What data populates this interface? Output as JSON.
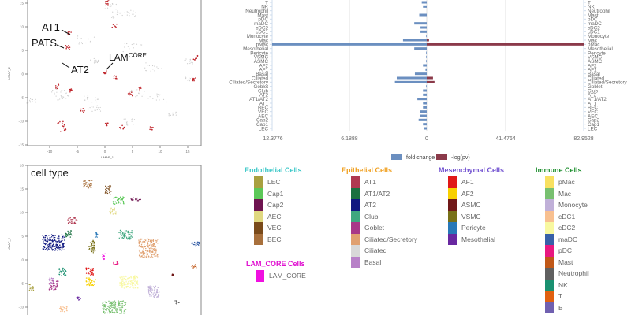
{
  "chart_data": [
    {
      "type": "scatter",
      "id": "umap-lam-highlight",
      "title": "",
      "xlabel": "UMAP_1",
      "ylabel": "UMAP_2",
      "xlim": [
        -14,
        17
      ],
      "ylim": [
        -15,
        15
      ],
      "xticks": [
        "-10",
        "-5",
        "0",
        "5",
        "10",
        "15"
      ],
      "yticks": [
        "15",
        "10",
        "5",
        "0",
        "-5",
        "-10",
        "-15"
      ],
      "annotations": [
        {
          "label": "AT1",
          "sup": ""
        },
        {
          "label": "PATS",
          "sup": ""
        },
        {
          "label": "AT2",
          "sup": ""
        },
        {
          "label": "LAM",
          "sup": "CORE"
        }
      ],
      "highlight_color": "#c0272d",
      "background_color": "#cccccc"
    },
    {
      "type": "scatter",
      "id": "umap-cell-type",
      "title": "cell type",
      "xlabel": "",
      "ylabel": "UMAP_2",
      "ylim": [
        -12,
        20
      ],
      "yticks": [
        "20",
        "15",
        "10",
        "5",
        "0",
        "-5",
        "-10"
      ]
    },
    {
      "type": "bar",
      "id": "diverging-bar",
      "orientation": "horizontal",
      "categories": [
        "LEC",
        "Cap1",
        "Cap2",
        "AEC",
        "VEC",
        "BEC",
        "AT1",
        "AT1/AT2",
        "AT2",
        "Club",
        "Goblet",
        "Ciliated/Secretory",
        "Ciliated",
        "Basal",
        "AF1",
        "AF2",
        "ASMC",
        "VSMC",
        "Pericyte",
        "Mesothelial",
        "pMac",
        "Mac",
        "Monocyte",
        "cDC1",
        "cDC2",
        "maDC",
        "pDC",
        "Mast",
        "Neutrophil",
        "NK",
        "T"
      ],
      "series": [
        {
          "name": "fold change",
          "color": "#6b8fc0",
          "direction": "left",
          "values": [
            0.2,
            0.3,
            0.65,
            0.55,
            0.55,
            0.3,
            0.3,
            0.75,
            0.3,
            0.3,
            0.05,
            2.55,
            2.4,
            0.95,
            0.1,
            0.3,
            0.05,
            0.05,
            0.05,
            1.0,
            12.3776,
            1.9,
            0.05,
            0.5,
            0.5,
            1.0,
            0.0,
            0.6,
            0.0,
            0.3,
            0.4
          ]
        },
        {
          "name": "-log(pv)",
          "color": "#8b3a4a",
          "direction": "right",
          "values": [
            0,
            0,
            0,
            0,
            0,
            0,
            0,
            0,
            0,
            0,
            0,
            4.1,
            3.3,
            0,
            0,
            0,
            0,
            0,
            0,
            0,
            82.9528,
            1.2,
            0,
            0,
            0,
            0,
            0,
            0,
            0,
            0,
            0
          ]
        }
      ],
      "xlim_left": [
        12.3776,
        0
      ],
      "xlim_right": [
        0,
        82.9528
      ],
      "xtick_labels": [
        "12.3776",
        "6.1888",
        "0",
        "41.4764",
        "82.9528"
      ],
      "legend": [
        "fold change",
        "-log(pv)"
      ],
      "legend_position": "bottom"
    }
  ],
  "legend": {
    "groups": [
      {
        "title": "Endothelial Cells",
        "color": "#3cc8c8",
        "items": [
          {
            "label": "LEC",
            "color": "#a8a040"
          },
          {
            "label": "Cap1",
            "color": "#5cc858"
          },
          {
            "label": "Cap2",
            "color": "#6e1450"
          },
          {
            "label": "AEC",
            "color": "#e0d880"
          },
          {
            "label": "VEC",
            "color": "#7a4a1a"
          },
          {
            "label": "BEC",
            "color": "#a8703c"
          }
        ]
      },
      {
        "title": "Epithelial Cells",
        "color": "#f0a020",
        "items": [
          {
            "label": "AT1",
            "color": "#b03850"
          },
          {
            "label": "AT1/AT2",
            "color": "#1a7040"
          },
          {
            "label": "AT2",
            "color": "#101880"
          },
          {
            "label": "Club",
            "color": "#40a880"
          },
          {
            "label": "Goblet",
            "color": "#a83888"
          },
          {
            "label": "Ciliated/Secretory",
            "color": "#e0a070"
          },
          {
            "label": "Ciliated",
            "color": "#d8d8d8"
          },
          {
            "label": "Basal",
            "color": "#b880c8"
          }
        ]
      },
      {
        "title": "Mesenchymal Cells",
        "color": "#7050d0",
        "items": [
          {
            "label": "AF1",
            "color": "#e01818"
          },
          {
            "label": "AF2",
            "color": "#f8d000"
          },
          {
            "label": "ASMC",
            "color": "#701818"
          },
          {
            "label": "VSMC",
            "color": "#787018"
          },
          {
            "label": "Pericyte",
            "color": "#2878b8"
          },
          {
            "label": "Mesothelial",
            "color": "#6828a0"
          }
        ]
      },
      {
        "title": "Immune Cells",
        "color": "#209030",
        "items": [
          {
            "label": "pMac",
            "color": "#f8e060"
          },
          {
            "label": "Mac",
            "color": "#78c070"
          },
          {
            "label": "Monocyte",
            "color": "#c0b0d8"
          },
          {
            "label": "cDC1",
            "color": "#f8c090"
          },
          {
            "label": "cDC2",
            "color": "#f8f8a0"
          },
          {
            "label": "maDC",
            "color": "#3860a8"
          },
          {
            "label": "pDC",
            "color": "#e81880"
          },
          {
            "label": "Mast",
            "color": "#c05818"
          },
          {
            "label": "Neutrophil",
            "color": "#606060"
          },
          {
            "label": "NK",
            "color": "#1a9070"
          },
          {
            "label": "T",
            "color": "#e06010"
          },
          {
            "label": "B",
            "color": "#7060b0"
          }
        ]
      },
      {
        "title": "LAM_CORE Cells",
        "color": "#e010d0",
        "items": [
          {
            "label": "LAM_CORE",
            "color": "#f010e0"
          }
        ]
      }
    ]
  }
}
